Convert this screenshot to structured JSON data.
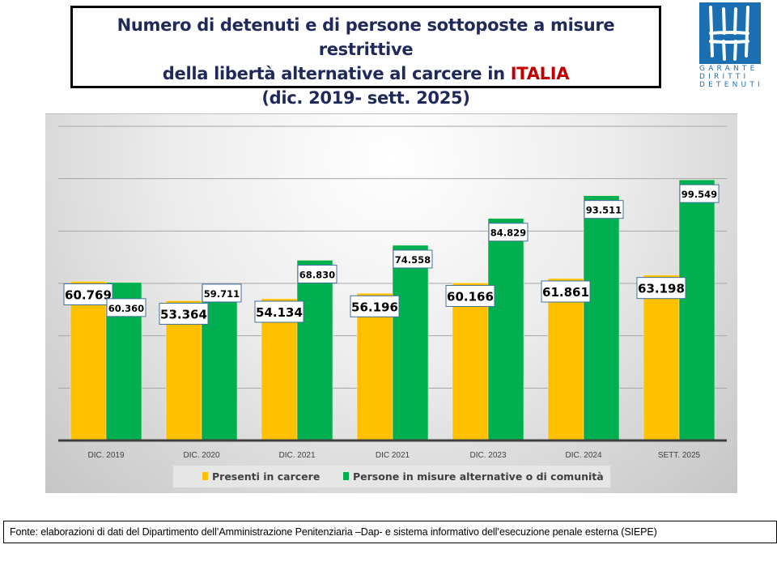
{
  "header": {
    "title_line1": "Numero di detenuti e di persone sottoposte a misure restrittive",
    "title_line2_prefix": "della libertà alternative al carcere in ",
    "title_line2_highlight": "ITALIA",
    "title_line3": "(dic. 2019- sett. 2025)"
  },
  "logo": {
    "lines": [
      "GARANTE",
      "DIRITTI",
      "DETENUTI"
    ],
    "icon": "garante-logo-icon"
  },
  "source": {
    "text": "Fonte: elaborazioni di dati del Dipartimento dell’Amministrazione Penitenziaria –Dap- e sistema informativo dell’esecuzione penale esterna (SIEPE)"
  },
  "colors": {
    "presenti": "#ffc000",
    "alternative": "#00b050",
    "title": "#1f2a5a",
    "highlight": "#c00000",
    "logo": "#1a6fb3"
  },
  "chart_data": {
    "type": "bar",
    "title": "Numero di detenuti e di persone sottoposte a misure restrittive della libertà alternative al carcere in ITALIA (dic. 2019- sett. 2025)",
    "xlabel": "",
    "ylabel": "",
    "ylim": [
      0,
      120000
    ],
    "grid_step": 20000,
    "grid": true,
    "y_tick_labels_visible": false,
    "legend_position": "bottom",
    "categories": [
      "DIC. 2019",
      "DIC. 2020",
      "DIC. 2021",
      "DIC 2021",
      "DIC. 2023",
      "DIC. 2024",
      "SETT. 2025"
    ],
    "series": [
      {
        "name": "Presenti in carcere",
        "values": [
          60769,
          53364,
          54134,
          56196,
          60166,
          61861,
          63198
        ],
        "labels": [
          "60.769",
          "53.364",
          "54.134",
          "56.196",
          "60.166",
          "61.861",
          "63.198"
        ]
      },
      {
        "name": "Persone in misure alternative o di comunità",
        "values": [
          60360,
          59711,
          68830,
          74558,
          84829,
          93511,
          99549
        ],
        "labels": [
          "60.360",
          "59.711",
          "68.830",
          "74.558",
          "84.829",
          "93.511",
          "99.549"
        ]
      }
    ]
  }
}
